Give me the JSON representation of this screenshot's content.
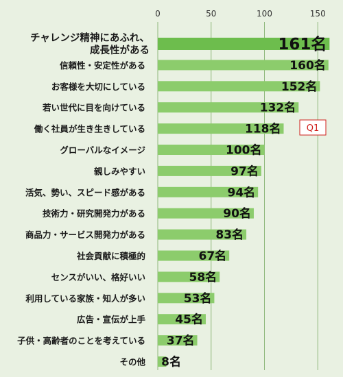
{
  "chart_data": {
    "type": "bar",
    "orientation": "horizontal",
    "unit": "名",
    "xlim": [
      0,
      165
    ],
    "ticks": [
      0,
      50,
      100,
      150
    ],
    "grid": true,
    "categories": [
      "チャレンジ精神にあふれ、成長性がある",
      "信頼性・安定性がある",
      "お客様を大切にしている",
      "若い世代に目を向けている",
      "働く社員が生き生きしている",
      "グローバルなイメージ",
      "親しみやすい",
      "活気、勢い、スピード感がある",
      "技術力・研究開発力がある",
      "商品力・サービス開発力がある",
      "社会貢献に積極的",
      "センスがいい、格好いい",
      "利用している家族・知人が多い",
      "広告・宣伝が上手",
      "子供・高齢者のことを考えている",
      "その他"
    ],
    "values": [
      161,
      160,
      152,
      132,
      118,
      100,
      97,
      94,
      90,
      83,
      67,
      58,
      53,
      45,
      37,
      8
    ],
    "bar_color": "#8ccc6c",
    "highlight_bar_color": "#6dbd4d"
  },
  "badge": {
    "text": "Q1",
    "color": "#d0201c"
  }
}
